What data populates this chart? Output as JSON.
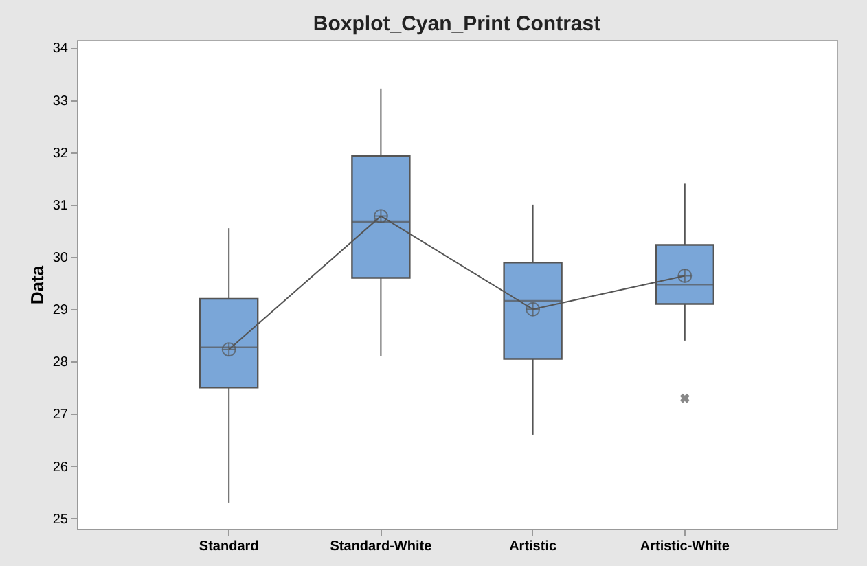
{
  "chart_data": {
    "type": "box",
    "title": "Boxplot_Cyan_Print Contrast",
    "ylabel": "Data",
    "categories": [
      "Standard",
      "Standard-White",
      "Artistic",
      "Artistic-White"
    ],
    "color": "#7aa6d8",
    "boxes": [
      {
        "low": 25.3,
        "q1": 27.5,
        "median": 28.27,
        "q3": 29.2,
        "high": 30.55
      },
      {
        "low": 28.1,
        "q1": 29.6,
        "median": 30.67,
        "q3": 31.93,
        "high": 33.22
      },
      {
        "low": 26.6,
        "q1": 28.05,
        "median": 29.16,
        "q3": 29.89,
        "high": 31.0
      },
      {
        "low": 28.4,
        "q1": 29.1,
        "median": 29.47,
        "q3": 30.23,
        "high": 31.4,
        "outliers": [
          27.3
        ]
      }
    ],
    "series": [
      {
        "type": "line",
        "color": "#555555",
        "values": [
          28.23,
          30.78,
          29.0,
          29.64
        ]
      }
    ],
    "ylim": [
      24.8,
      34.15
    ],
    "yticks": [
      25,
      26,
      27,
      28,
      29,
      30,
      31,
      32,
      33,
      34
    ],
    "grid": false,
    "marker": "circle"
  }
}
